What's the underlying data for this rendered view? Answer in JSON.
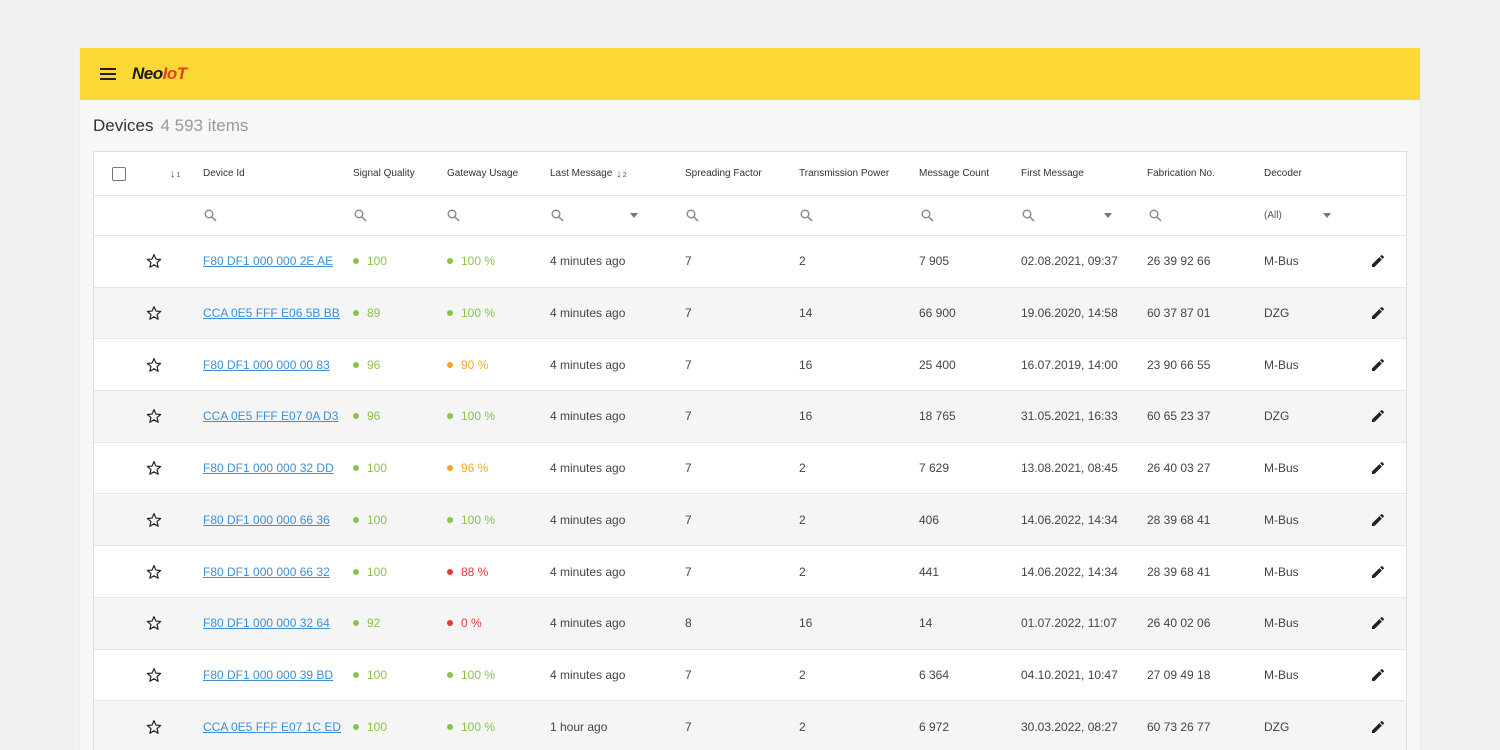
{
  "app": {
    "logo_neo": "Neo",
    "logo_iot": "IoT"
  },
  "page": {
    "title": "Devices",
    "count": "4 593 items"
  },
  "colors": {
    "good": "#8bc34a",
    "warn": "#f5a623",
    "bad": "#e53935",
    "link": "#3d8fd6",
    "topbar": "#fcd836"
  },
  "sort": {
    "first": "1",
    "second": "2"
  },
  "columns": {
    "device_id": "Device Id",
    "signal": "Signal Quality",
    "gateway": "Gateway Usage",
    "last_message": "Last Message",
    "spreading": "Spreading Factor",
    "tx_power": "Transmission Power",
    "msg_count": "Message Count",
    "first_message": "First Message",
    "fabrication": "Fabrication No.",
    "decoder": "Decoder"
  },
  "filters": {
    "decoder_value": "(All)"
  },
  "rows": [
    {
      "device_id": "F80 DF1 000 000 2E AE",
      "signal": "100",
      "signal_status": "good",
      "gateway": "100 %",
      "gateway_status": "good",
      "last_message": "4 minutes ago",
      "spreading": "7",
      "tx_power": "2",
      "msg_count": "7 905",
      "first_message": "02.08.2021, 09:37",
      "fabrication": "26 39 92 66",
      "decoder": "M-Bus"
    },
    {
      "device_id": "CCA 0E5 FFF E06 5B BB",
      "signal": "89",
      "signal_status": "good",
      "gateway": "100 %",
      "gateway_status": "good",
      "last_message": "4 minutes ago",
      "spreading": "7",
      "tx_power": "14",
      "msg_count": "66 900",
      "first_message": "19.06.2020, 14:58",
      "fabrication": "60 37 87 01",
      "decoder": "DZG"
    },
    {
      "device_id": "F80 DF1 000 000 00 83",
      "signal": "96",
      "signal_status": "good",
      "gateway": "90 %",
      "gateway_status": "warn",
      "last_message": "4 minutes ago",
      "spreading": "7",
      "tx_power": "16",
      "msg_count": "25 400",
      "first_message": "16.07.2019, 14:00",
      "fabrication": "23 90 66 55",
      "decoder": "M-Bus"
    },
    {
      "device_id": "CCA 0E5 FFF E07 0A D3",
      "signal": "96",
      "signal_status": "good",
      "gateway": "100 %",
      "gateway_status": "good",
      "last_message": "4 minutes ago",
      "spreading": "7",
      "tx_power": "16",
      "msg_count": "18 765",
      "first_message": "31.05.2021, 16:33",
      "fabrication": "60 65 23 37",
      "decoder": "DZG"
    },
    {
      "device_id": "F80 DF1 000 000 32 DD",
      "signal": "100",
      "signal_status": "good",
      "gateway": "96 %",
      "gateway_status": "warn",
      "last_message": "4 minutes ago",
      "spreading": "7",
      "tx_power": "2",
      "msg_count": "7 629",
      "first_message": "13.08.2021, 08:45",
      "fabrication": "26 40 03 27",
      "decoder": "M-Bus"
    },
    {
      "device_id": "F80 DF1 000 000 66 36",
      "signal": "100",
      "signal_status": "good",
      "gateway": "100 %",
      "gateway_status": "good",
      "last_message": "4 minutes ago",
      "spreading": "7",
      "tx_power": "2",
      "msg_count": "406",
      "first_message": "14.06.2022, 14:34",
      "fabrication": "28 39 68 41",
      "decoder": "M-Bus"
    },
    {
      "device_id": "F80 DF1 000 000 66 32",
      "signal": "100",
      "signal_status": "good",
      "gateway": "88 %",
      "gateway_status": "bad",
      "last_message": "4 minutes ago",
      "spreading": "7",
      "tx_power": "2",
      "msg_count": "441",
      "first_message": "14.06.2022, 14:34",
      "fabrication": "28 39 68 41",
      "decoder": "M-Bus"
    },
    {
      "device_id": "F80 DF1 000 000 32 64",
      "signal": "92",
      "signal_status": "good",
      "gateway": "0 %",
      "gateway_status": "bad",
      "last_message": "4 minutes ago",
      "spreading": "8",
      "tx_power": "16",
      "msg_count": "14",
      "first_message": "01.07.2022, 11:07",
      "fabrication": "26 40 02 06",
      "decoder": "M-Bus"
    },
    {
      "device_id": "F80 DF1 000 000 39 BD",
      "signal": "100",
      "signal_status": "good",
      "gateway": "100 %",
      "gateway_status": "good",
      "last_message": "4 minutes ago",
      "spreading": "7",
      "tx_power": "2",
      "msg_count": "6 364",
      "first_message": "04.10.2021, 10:47",
      "fabrication": "27 09 49 18",
      "decoder": "M-Bus"
    },
    {
      "device_id": "CCA 0E5 FFF E07 1C ED",
      "signal": "100",
      "signal_status": "good",
      "gateway": "100 %",
      "gateway_status": "good",
      "last_message": "1 hour ago",
      "spreading": "7",
      "tx_power": "2",
      "msg_count": "6 972",
      "first_message": "30.03.2022, 08:27",
      "fabrication": "60 73 26 77",
      "decoder": "DZG"
    }
  ]
}
